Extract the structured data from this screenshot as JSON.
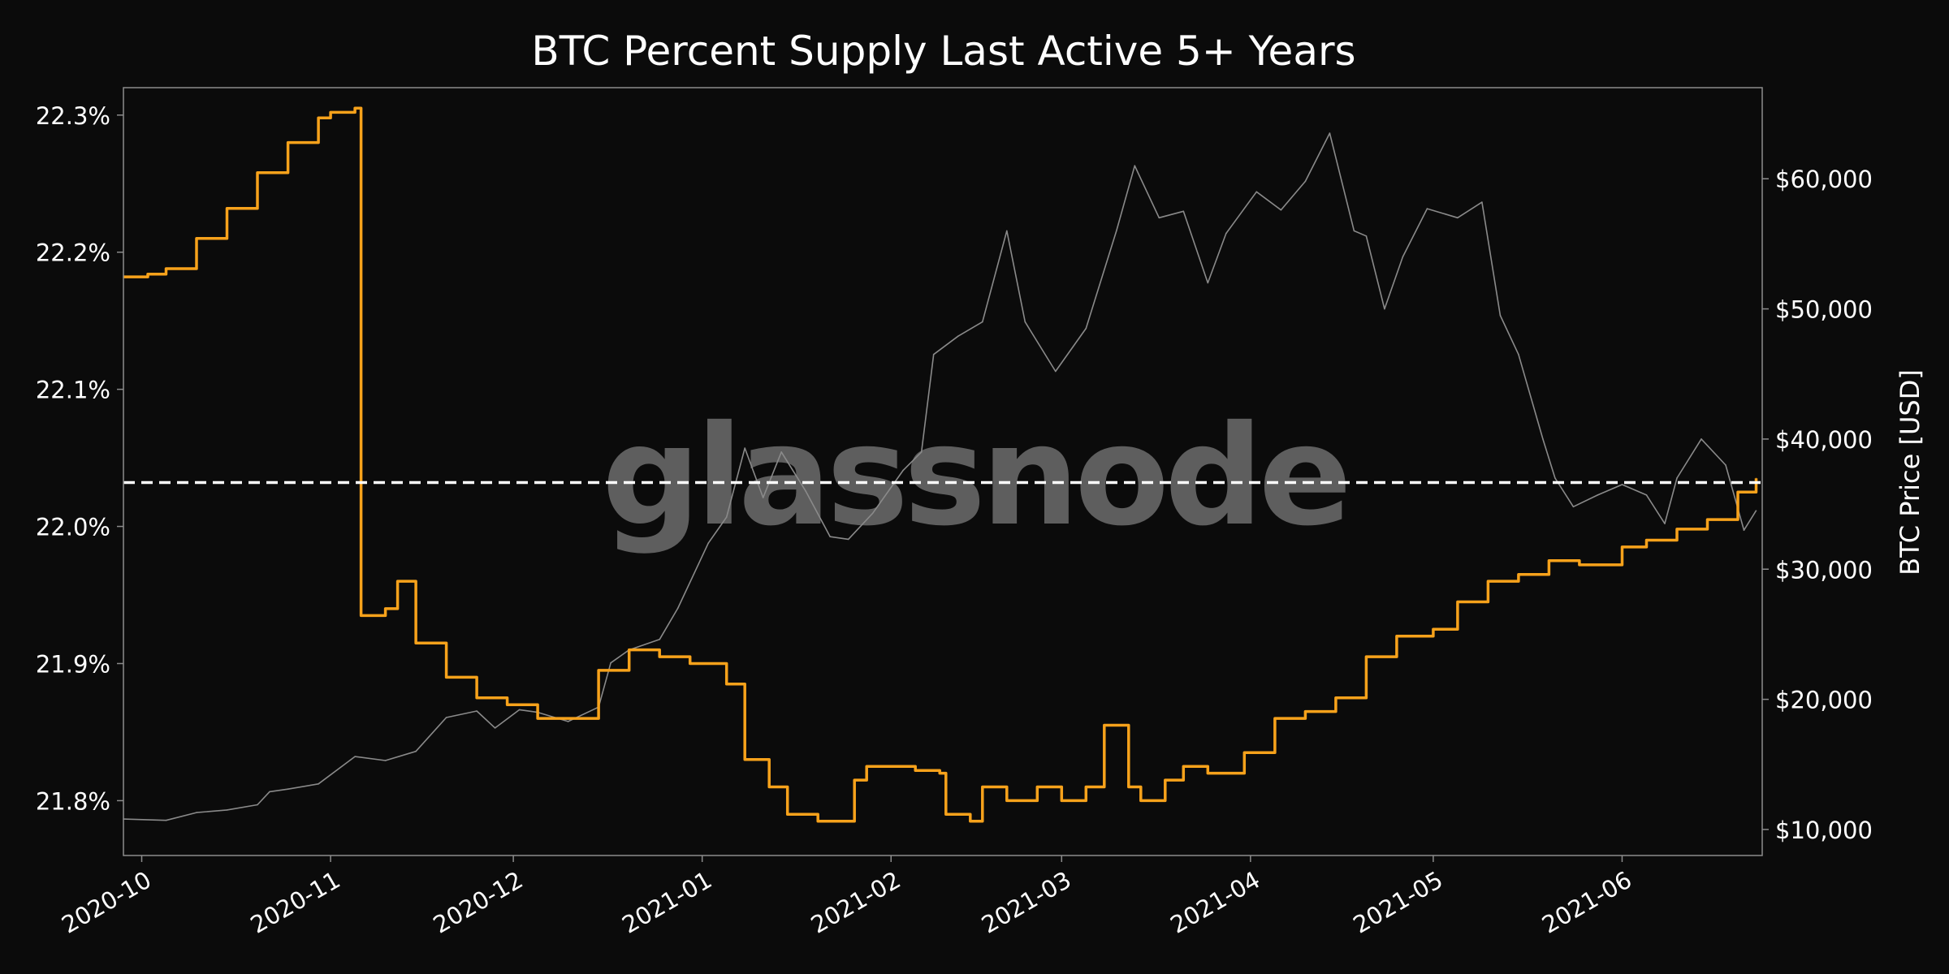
{
  "chart_data": {
    "type": "line",
    "title": "BTC Percent Supply Last Active 5+ Years",
    "watermark": "glassnode",
    "xlabel": "",
    "ylabel": "",
    "y2label": "BTC Price [USD]",
    "x_range": [
      "2020-09-28",
      "2021-06-24"
    ],
    "ylim": [
      21.76,
      22.32
    ],
    "y2lim": [
      8000,
      67000
    ],
    "x_ticks": [
      "2020-10",
      "2020-11",
      "2020-12",
      "2021-01",
      "2021-02",
      "2021-03",
      "2021-04",
      "2021-05",
      "2021-06"
    ],
    "y_ticks": [
      {
        "value": 21.8,
        "label": "21.8%"
      },
      {
        "value": 21.9,
        "label": "21.9%"
      },
      {
        "value": 22.0,
        "label": "22.0%"
      },
      {
        "value": 22.1,
        "label": "22.1%"
      },
      {
        "value": 22.2,
        "label": "22.2%"
      },
      {
        "value": 22.3,
        "label": "22.3%"
      }
    ],
    "y2_ticks": [
      {
        "value": 10000,
        "label": "$10,000"
      },
      {
        "value": 20000,
        "label": "$20,000"
      },
      {
        "value": 30000,
        "label": "$30,000"
      },
      {
        "value": 40000,
        "label": "$40,000"
      },
      {
        "value": 50000,
        "label": "$50,000"
      },
      {
        "value": 60000,
        "label": "$60,000"
      }
    ],
    "reference_line": {
      "axis": "y",
      "value": 22.032,
      "style": "dashed",
      "color": "#ffffff"
    },
    "series": [
      {
        "name": "Percent Supply Last Active 5+ Years",
        "axis": "left",
        "color": "#f7a21b",
        "x": [
          "2020-09-28",
          "2020-10-02",
          "2020-10-05",
          "2020-10-10",
          "2020-10-15",
          "2020-10-20",
          "2020-10-25",
          "2020-10-30",
          "2020-11-01",
          "2020-11-05",
          "2020-11-06",
          "2020-11-10",
          "2020-11-12",
          "2020-11-15",
          "2020-11-20",
          "2020-11-25",
          "2020-11-30",
          "2020-12-05",
          "2020-12-10",
          "2020-12-15",
          "2020-12-20",
          "2020-12-25",
          "2020-12-30",
          "2021-01-05",
          "2021-01-08",
          "2021-01-12",
          "2021-01-15",
          "2021-01-20",
          "2021-01-25",
          "2021-01-26",
          "2021-01-28",
          "2021-02-05",
          "2021-02-09",
          "2021-02-10",
          "2021-02-14",
          "2021-02-16",
          "2021-02-20",
          "2021-02-25",
          "2021-03-01",
          "2021-03-05",
          "2021-03-08",
          "2021-03-12",
          "2021-03-14",
          "2021-03-18",
          "2021-03-21",
          "2021-03-25",
          "2021-03-31",
          "2021-04-05",
          "2021-04-10",
          "2021-04-15",
          "2021-04-20",
          "2021-04-25",
          "2021-05-01",
          "2021-05-05",
          "2021-05-10",
          "2021-05-15",
          "2021-05-20",
          "2021-05-25",
          "2021-06-01",
          "2021-06-05",
          "2021-06-10",
          "2021-06-15",
          "2021-06-20",
          "2021-06-23"
        ],
        "values": [
          22.182,
          22.184,
          22.188,
          22.21,
          22.232,
          22.258,
          22.28,
          22.298,
          22.302,
          22.305,
          21.935,
          21.94,
          21.96,
          21.915,
          21.89,
          21.875,
          21.87,
          21.86,
          21.86,
          21.895,
          21.91,
          21.905,
          21.9,
          21.885,
          21.83,
          21.81,
          21.79,
          21.785,
          21.785,
          21.815,
          21.825,
          21.822,
          21.82,
          21.79,
          21.785,
          21.81,
          21.8,
          21.81,
          21.8,
          21.81,
          21.855,
          21.81,
          21.8,
          21.815,
          21.825,
          21.82,
          21.835,
          21.86,
          21.865,
          21.875,
          21.905,
          21.92,
          21.925,
          21.945,
          21.96,
          21.965,
          21.975,
          21.972,
          21.985,
          21.99,
          21.998,
          22.005,
          22.025,
          22.035
        ]
      },
      {
        "name": "BTC Price",
        "axis": "right",
        "color": "#8a8a8a",
        "x": [
          "2020-09-28",
          "2020-10-05",
          "2020-10-10",
          "2020-10-15",
          "2020-10-20",
          "2020-10-22",
          "2020-10-25",
          "2020-10-30",
          "2020-11-05",
          "2020-11-10",
          "2020-11-15",
          "2020-11-20",
          "2020-11-25",
          "2020-11-28",
          "2020-12-02",
          "2020-12-05",
          "2020-12-10",
          "2020-12-15",
          "2020-12-17",
          "2020-12-20",
          "2020-12-25",
          "2020-12-28",
          "2021-01-02",
          "2021-01-05",
          "2021-01-08",
          "2021-01-11",
          "2021-01-14",
          "2021-01-18",
          "2021-01-22",
          "2021-01-25",
          "2021-01-29",
          "2021-02-03",
          "2021-02-06",
          "2021-02-08",
          "2021-02-12",
          "2021-02-16",
          "2021-02-20",
          "2021-02-23",
          "2021-02-28",
          "2021-03-05",
          "2021-03-10",
          "2021-03-13",
          "2021-03-17",
          "2021-03-21",
          "2021-03-25",
          "2021-03-28",
          "2021-04-02",
          "2021-04-06",
          "2021-04-10",
          "2021-04-14",
          "2021-04-18",
          "2021-04-20",
          "2021-04-23",
          "2021-04-26",
          "2021-04-30",
          "2021-05-05",
          "2021-05-09",
          "2021-05-12",
          "2021-05-15",
          "2021-05-19",
          "2021-05-21",
          "2021-05-24",
          "2021-05-28",
          "2021-06-01",
          "2021-06-05",
          "2021-06-08",
          "2021-06-10",
          "2021-06-14",
          "2021-06-18",
          "2021-06-21",
          "2021-06-23"
        ],
        "values": [
          10800,
          10700,
          11300,
          11500,
          11900,
          12900,
          13100,
          13500,
          15600,
          15300,
          16000,
          18600,
          19100,
          17800,
          19200,
          19000,
          18300,
          19400,
          22800,
          23800,
          24600,
          27000,
          32000,
          34000,
          39300,
          35500,
          39000,
          36000,
          32500,
          32300,
          34300,
          37600,
          39000,
          46500,
          47900,
          49000,
          56000,
          49000,
          45200,
          48500,
          56000,
          61000,
          57000,
          57500,
          52000,
          55800,
          59000,
          57600,
          59800,
          63500,
          56000,
          55600,
          50000,
          54000,
          57700,
          57000,
          58200,
          49500,
          46500,
          40000,
          37000,
          34800,
          35700,
          36500,
          35700,
          33500,
          37000,
          40000,
          38000,
          33000,
          34500
        ]
      }
    ]
  }
}
